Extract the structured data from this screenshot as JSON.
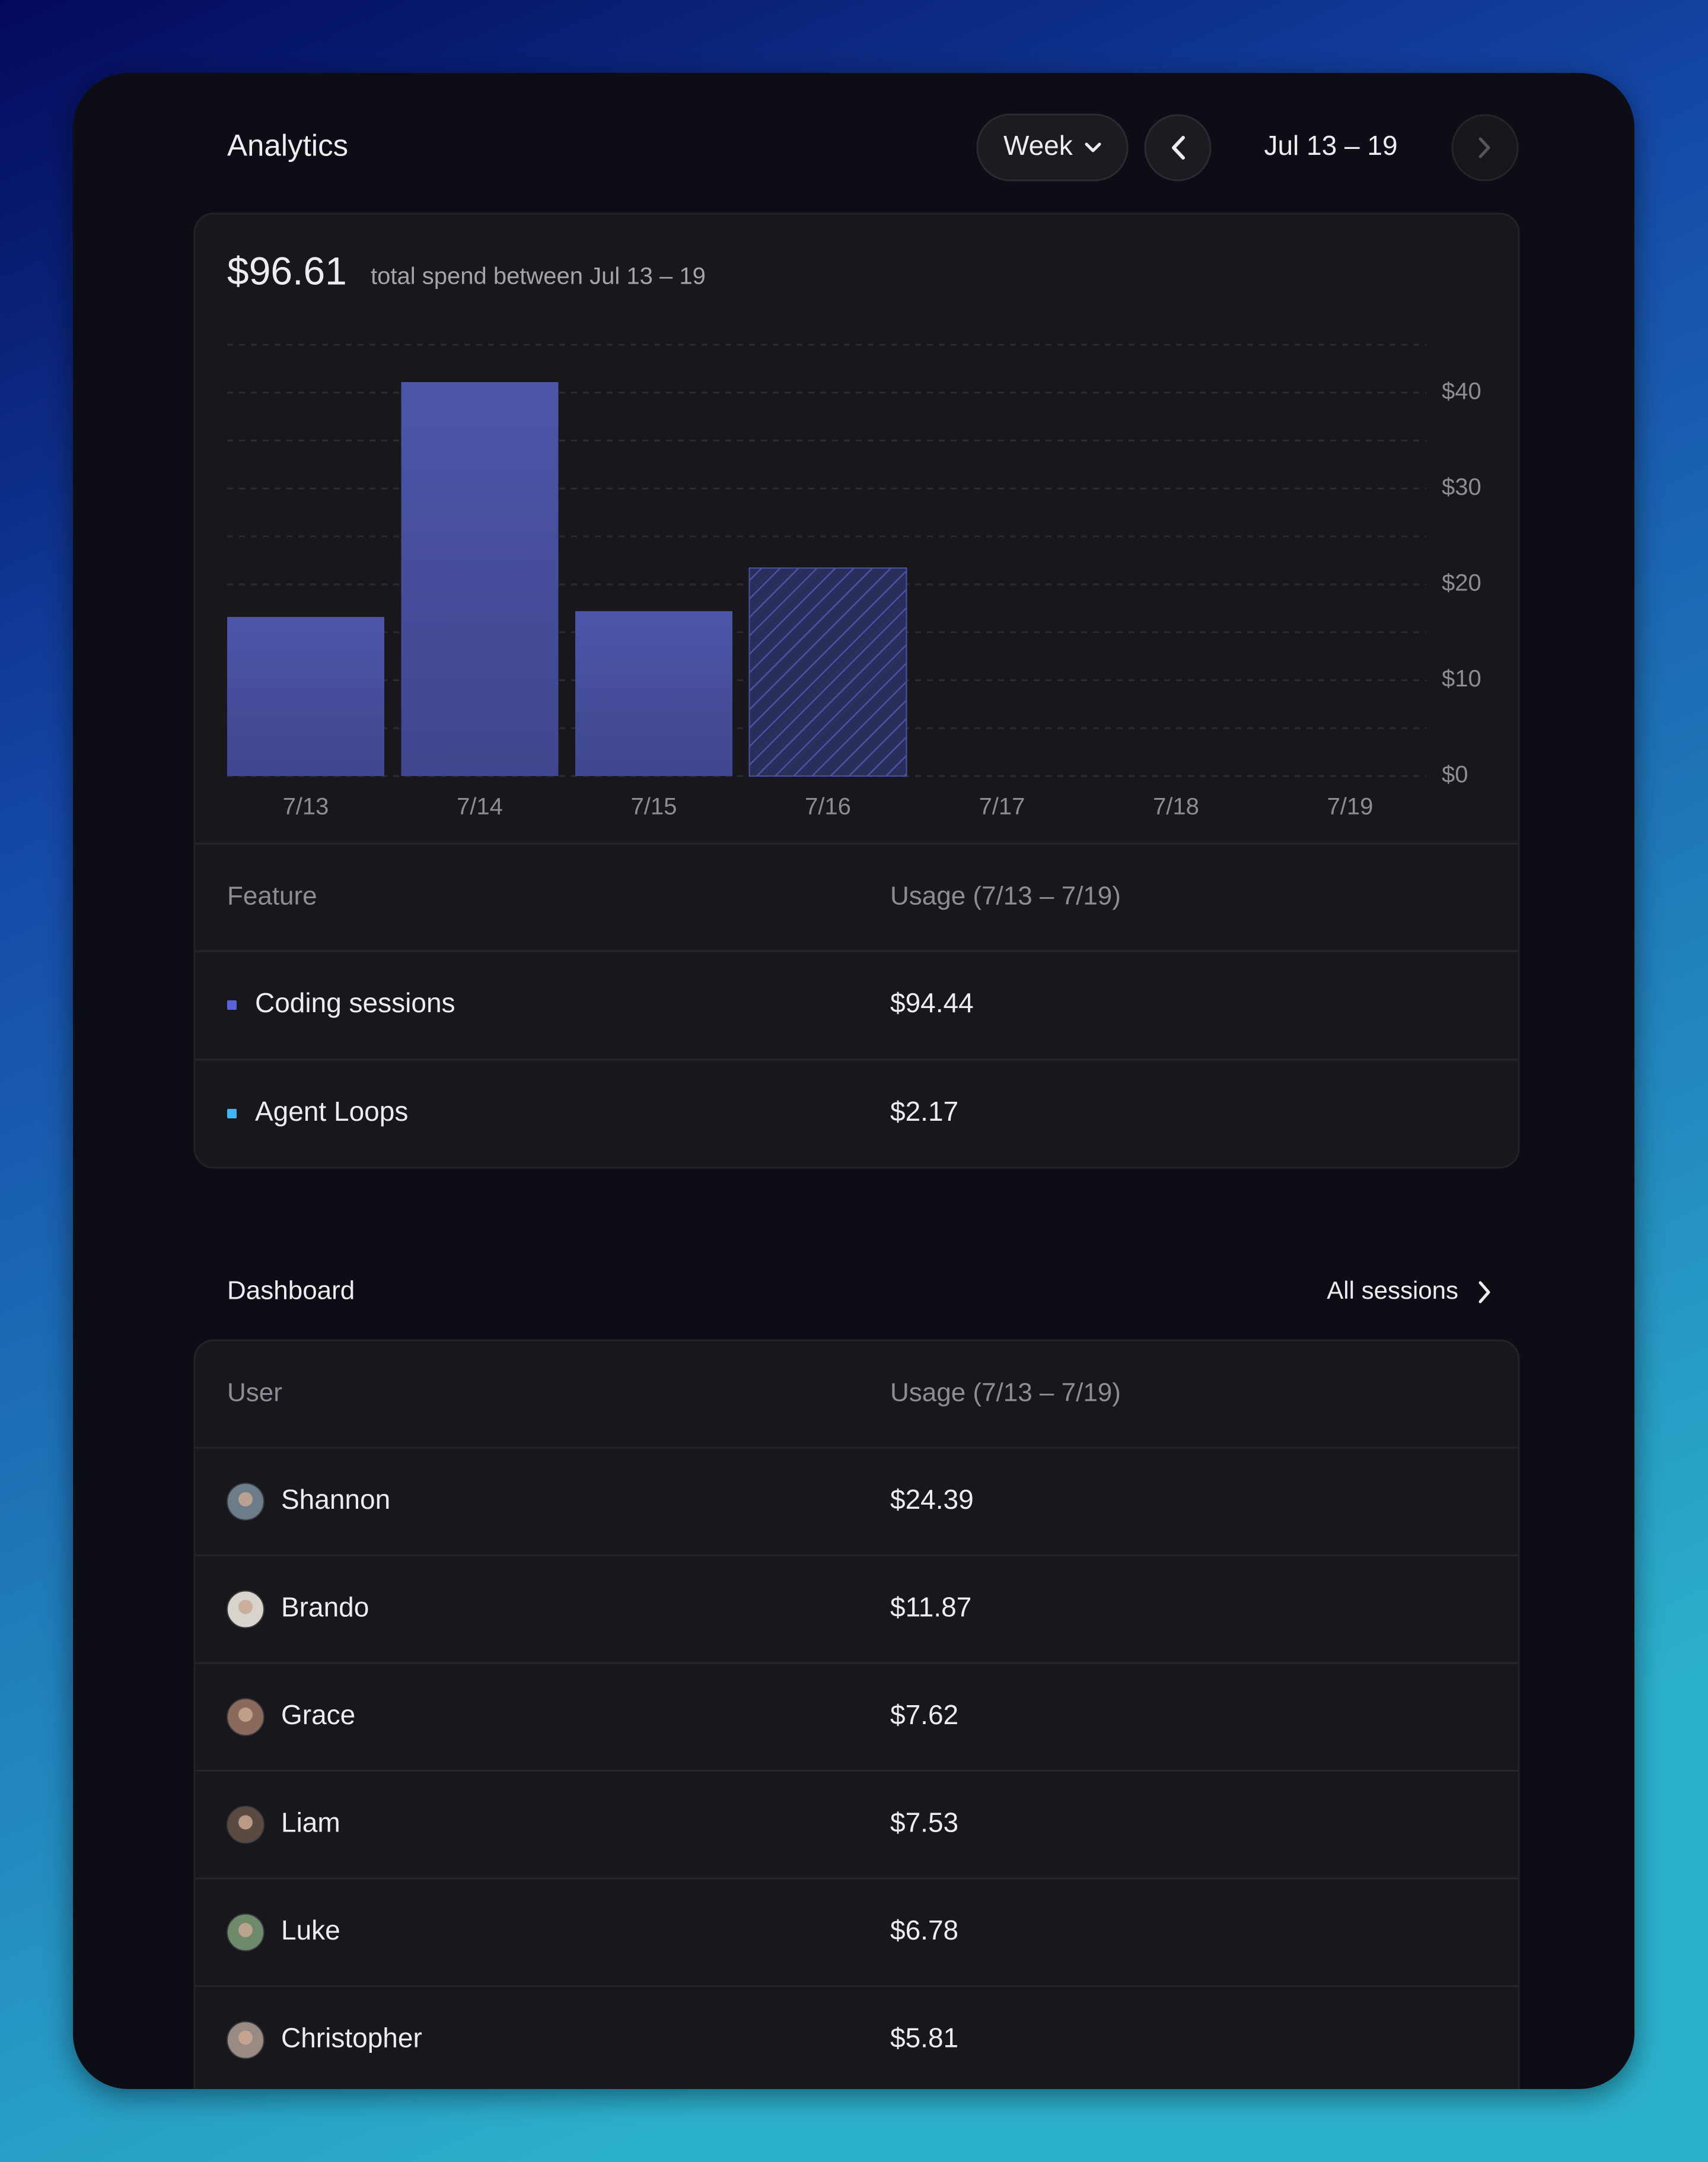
{
  "header": {
    "title": "Analytics",
    "period_button": "Week",
    "date_range": "Jul 13 – 19"
  },
  "summary": {
    "total": "$96.61",
    "caption": "total spend between Jul 13 – 19"
  },
  "chart_data": {
    "type": "bar",
    "categories": [
      "7/13",
      "7/14",
      "7/15",
      "7/16",
      "7/17",
      "7/18",
      "7/19"
    ],
    "values": [
      16.6,
      41.1,
      17.2,
      21.7,
      null,
      null,
      null
    ],
    "hatched": [
      false,
      false,
      false,
      true,
      false,
      false,
      false
    ],
    "color": "#4a53a3",
    "ylim": [
      0,
      45
    ],
    "yticks": [
      {
        "value": 0,
        "label": "$0"
      },
      {
        "value": 10,
        "label": "$10"
      },
      {
        "value": 20,
        "label": "$20"
      },
      {
        "value": 30,
        "label": "$30"
      },
      {
        "value": 40,
        "label": "$40"
      }
    ],
    "minor_yticks": [
      5,
      15,
      25,
      35,
      45
    ],
    "grid": true
  },
  "feature_table": {
    "columns": [
      "Feature",
      "Usage (7/13 – 7/19)"
    ],
    "rows": [
      [
        "Coding sessions",
        "$94.44"
      ],
      [
        "Agent Loops",
        "$2.17"
      ]
    ],
    "colors": [
      "#5a62d8",
      "#3db7f2"
    ]
  },
  "dashboard": {
    "title": "Dashboard",
    "link": "All sessions",
    "columns": [
      "User",
      "Usage (7/13 – 7/19)"
    ],
    "rows": [
      [
        "Shannon",
        "$24.39"
      ],
      [
        "Brando",
        "$11.87"
      ],
      [
        "Grace",
        "$7.62"
      ],
      [
        "Liam",
        "$7.53"
      ],
      [
        "Luke",
        "$6.78"
      ],
      [
        "Christopher",
        "$5.81"
      ]
    ]
  }
}
